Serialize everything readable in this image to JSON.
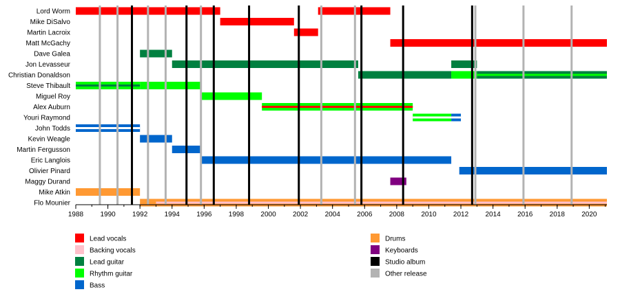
{
  "chart_data": {
    "type": "timeline",
    "title": "",
    "xlim": [
      1988,
      2021.1
    ],
    "x_ticks": [
      "1988",
      "1990",
      "1992",
      "1994",
      "1996",
      "1998",
      "2000",
      "2002",
      "2004",
      "2006",
      "2008",
      "2010",
      "2012",
      "2014",
      "2016",
      "2018",
      "2020"
    ],
    "colors": {
      "lead_vocals": "#ff0000",
      "backing_vocals": "#ffc0cb",
      "lead_guitar": "#008040",
      "rhythm_guitar": "#00ff00",
      "bass": "#0066cc",
      "drums": "#ff9933",
      "keyboards": "#800080",
      "studio_album": "#000000",
      "other_release": "#b3b3b3"
    },
    "studio_albums": [
      1991.5,
      1994.9,
      1996.6,
      1998.8,
      2001.9,
      2005.8,
      2008.4,
      2012.7
    ],
    "other_releases": [
      1989.5,
      1990.6,
      1992.5,
      1993.6,
      1995.8,
      2003.3,
      2005.4,
      2012.9,
      2015.9,
      2018.9
    ],
    "members": [
      {
        "name": "Lord Worm",
        "segments": [
          {
            "role": "lead_vocals",
            "start": 1988.0,
            "end": 1997.0
          },
          {
            "role": "lead_vocals",
            "start": 2003.1,
            "end": 2007.6
          }
        ]
      },
      {
        "name": "Mike DiSalvo",
        "segments": [
          {
            "role": "lead_vocals",
            "start": 1997.0,
            "end": 2001.6
          }
        ]
      },
      {
        "name": "Martin Lacroix",
        "segments": [
          {
            "role": "lead_vocals",
            "start": 2001.6,
            "end": 2003.1
          }
        ]
      },
      {
        "name": "Matt McGachy",
        "segments": [
          {
            "role": "lead_vocals",
            "start": 2007.6,
            "end": 2021.1
          }
        ]
      },
      {
        "name": "Dave Galea",
        "segments": [
          {
            "role": "lead_guitar",
            "start": 1992.0,
            "end": 1994.0
          }
        ]
      },
      {
        "name": "Jon Levasseur",
        "segments": [
          {
            "role": "lead_guitar",
            "start": 1994.0,
            "end": 2005.6
          },
          {
            "role": "lead_guitar",
            "start": 2011.4,
            "end": 2013.0
          }
        ]
      },
      {
        "name": "Christian Donaldson",
        "segments": [
          {
            "role": "lead_guitar",
            "start": 2005.6,
            "end": 2011.4
          },
          {
            "role": "rhythm_guitar",
            "start": 2011.4,
            "end": 2013.0
          },
          {
            "role": "lead_guitar",
            "start": 2013.0,
            "end": 2021.1,
            "secondary": "rhythm_guitar"
          }
        ]
      },
      {
        "name": "Steve Thibault",
        "segments": [
          {
            "role": "rhythm_guitar",
            "start": 1988.0,
            "end": 1992.0,
            "secondary": "lead_guitar"
          },
          {
            "role": "rhythm_guitar",
            "start": 1992.0,
            "end": 1995.8
          }
        ]
      },
      {
        "name": "Miguel Roy",
        "segments": [
          {
            "role": "rhythm_guitar",
            "start": 1995.8,
            "end": 1999.6
          }
        ]
      },
      {
        "name": "Alex Auburn",
        "segments": [
          {
            "role": "rhythm_guitar",
            "start": 1999.6,
            "end": 2009.0,
            "secondary": "lead_vocals"
          }
        ]
      },
      {
        "name": "Youri Raymond",
        "segments": [
          {
            "role": "rhythm_guitar",
            "start": 2009.0,
            "end": 2011.4,
            "secondary": "white"
          },
          {
            "role": "bass",
            "start": 2011.4,
            "end": 2012.0,
            "secondary": "white"
          }
        ]
      },
      {
        "name": "John Todds",
        "segments": [
          {
            "role": "bass",
            "start": 1988.0,
            "end": 1992.0,
            "secondary": "white"
          }
        ]
      },
      {
        "name": "Kevin Weagle",
        "segments": [
          {
            "role": "bass",
            "start": 1992.0,
            "end": 1994.0
          }
        ]
      },
      {
        "name": "Martin Fergusson",
        "segments": [
          {
            "role": "bass",
            "start": 1994.0,
            "end": 1995.8
          }
        ]
      },
      {
        "name": "Eric Langlois",
        "segments": [
          {
            "role": "bass",
            "start": 1995.8,
            "end": 2011.4
          }
        ]
      },
      {
        "name": "Olivier Pinard",
        "segments": [
          {
            "role": "bass",
            "start": 2011.9,
            "end": 2021.1
          }
        ]
      },
      {
        "name": "Maggy Durand",
        "segments": [
          {
            "role": "keyboards",
            "start": 2007.6,
            "end": 2008.6
          }
        ]
      },
      {
        "name": "Mike Atkin",
        "segments": [
          {
            "role": "drums",
            "start": 1988.0,
            "end": 1992.0
          }
        ]
      },
      {
        "name": "Flo Mounier",
        "segments": [
          {
            "role": "drums",
            "start": 1992.0,
            "end": 1993.0
          },
          {
            "role": "drums",
            "start": 1993.0,
            "end": 2021.1,
            "secondary": "backing_vocals"
          }
        ]
      }
    ],
    "legend": [
      {
        "key": "lead_vocals",
        "label": "Lead vocals",
        "column": 0
      },
      {
        "key": "backing_vocals",
        "label": "Backing vocals",
        "column": 0
      },
      {
        "key": "lead_guitar",
        "label": "Lead guitar",
        "column": 0
      },
      {
        "key": "rhythm_guitar",
        "label": "Rhythm guitar",
        "column": 0
      },
      {
        "key": "bass",
        "label": "Bass",
        "column": 0
      },
      {
        "key": "drums",
        "label": "Drums",
        "column": 1
      },
      {
        "key": "keyboards",
        "label": "Keyboards",
        "column": 1
      },
      {
        "key": "studio_album",
        "label": "Studio album",
        "column": 1
      },
      {
        "key": "other_release",
        "label": "Other release",
        "column": 1
      }
    ]
  }
}
